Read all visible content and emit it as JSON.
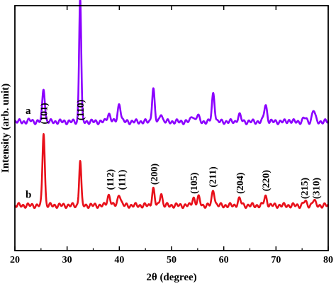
{
  "chart_data": {
    "type": "line",
    "xlabel": "2θ (degree)",
    "ylabel": "Intensity (arb. unit)",
    "xlim": [
      20,
      80
    ],
    "x_ticks": [
      "20",
      "30",
      "40",
      "50",
      "60",
      "70",
      "80"
    ],
    "y_ticks_shown": false,
    "grid": false,
    "colors": {
      "a": "#8B00FF",
      "b": "#E8101A"
    },
    "series": [
      {
        "name": "a",
        "color": "#8B00FF",
        "baseline": 100,
        "peaks": [
          [
            23.0,
            1,
            0.35
          ],
          [
            25.5,
            26,
            0.24
          ],
          [
            32.5,
            97,
            0.2
          ],
          [
            38.0,
            6,
            0.32
          ],
          [
            40.0,
            14,
            0.28
          ],
          [
            46.5,
            26,
            0.24
          ],
          [
            48.0,
            7,
            0.22
          ],
          [
            54.0,
            5,
            0.26
          ],
          [
            55.0,
            5,
            0.26
          ],
          [
            58.0,
            22,
            0.26
          ],
          [
            63.0,
            5,
            0.3
          ],
          [
            68.0,
            13,
            0.28
          ],
          [
            75.5,
            3,
            0.3
          ],
          [
            77.2,
            9,
            0.28
          ],
          [
            72.5,
            1,
            0.3
          ]
        ]
      },
      {
        "name": "b",
        "color": "#E8101A",
        "baseline": 35,
        "peaks": [
          [
            25.5,
            57,
            0.22
          ],
          [
            32.5,
            35,
            0.2
          ],
          [
            38.0,
            8,
            0.3
          ],
          [
            40.0,
            9,
            0.28
          ],
          [
            46.5,
            13,
            0.24
          ],
          [
            48.0,
            10,
            0.22
          ],
          [
            54.2,
            6,
            0.26
          ],
          [
            55.2,
            6,
            0.26
          ],
          [
            58.0,
            12,
            0.26
          ],
          [
            63.0,
            5,
            0.3
          ],
          [
            68.0,
            7,
            0.28
          ],
          [
            75.5,
            3,
            0.3
          ],
          [
            77.2,
            4,
            0.28
          ]
        ]
      }
    ],
    "curve_labels": [
      "b",
      "a"
    ],
    "annotations": [
      {
        "text": "(101)",
        "x": 25.5,
        "y": 98
      },
      {
        "text": "(110)",
        "x": 32.5,
        "y": 101
      },
      {
        "text": "(112)",
        "x": 38.2,
        "y": 47
      },
      {
        "text": "(111)",
        "x": 40.4,
        "y": 47
      },
      {
        "text": "(200)",
        "x": 46.6,
        "y": 51
      },
      {
        "text": "(105)",
        "x": 54.2,
        "y": 44
      },
      {
        "text": "(211)",
        "x": 57.8,
        "y": 49
      },
      {
        "text": "(204)",
        "x": 63.0,
        "y": 44
      },
      {
        "text": "(220)",
        "x": 68.0,
        "y": 46
      },
      {
        "text": "(215)",
        "x": 75.4,
        "y": 40
      },
      {
        "text": "(310)",
        "x": 77.6,
        "y": 40
      }
    ]
  }
}
